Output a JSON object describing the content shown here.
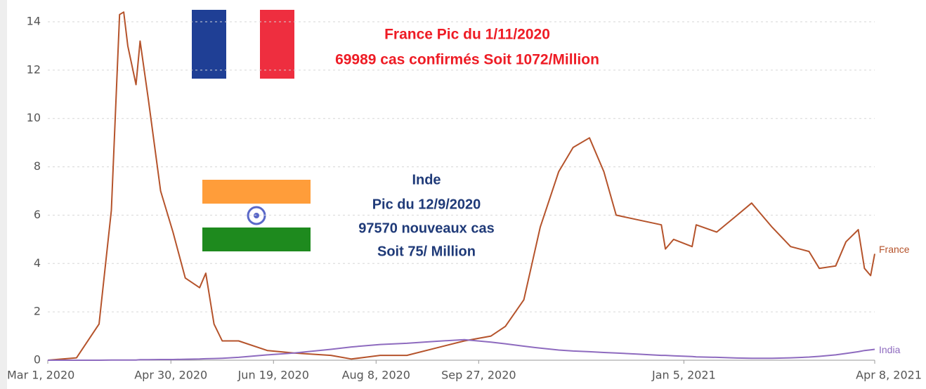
{
  "chart_data": {
    "type": "line",
    "x": [
      "2020-03-01",
      "2020-03-15",
      "2020-03-26",
      "2020-04-01",
      "2020-04-05",
      "2020-04-07",
      "2020-04-09",
      "2020-04-13",
      "2020-04-15",
      "2020-04-19",
      "2020-04-25",
      "2020-05-01",
      "2020-05-07",
      "2020-05-14",
      "2020-05-17",
      "2020-05-21",
      "2020-05-25",
      "2020-06-02",
      "2020-06-16",
      "2020-06-29",
      "2020-07-17",
      "2020-07-27",
      "2020-08-10",
      "2020-08-23",
      "2020-09-06",
      "2020-09-20",
      "2020-10-03",
      "2020-10-10",
      "2020-10-19",
      "2020-10-27",
      "2020-11-05",
      "2020-11-12",
      "2020-11-20",
      "2020-11-27",
      "2020-12-03",
      "2020-12-14",
      "2020-12-25",
      "2020-12-27",
      "2020-12-31",
      "2021-01-09",
      "2021-01-11",
      "2021-01-21",
      "2021-01-31",
      "2021-02-07",
      "2021-02-10",
      "2021-02-17",
      "2021-02-26",
      "2021-03-07",
      "2021-03-12",
      "2021-03-20",
      "2021-03-25",
      "2021-03-31",
      "2021-04-03",
      "2021-04-06",
      "2021-04-08"
    ],
    "series": [
      {
        "name": "France",
        "color": "#b5532b",
        "values": [
          0,
          0.1,
          1.5,
          6.2,
          14.3,
          14.4,
          13,
          11.4,
          13.2,
          10.8,
          7,
          5.3,
          3.4,
          3,
          3.6,
          1.5,
          0.8,
          0.8,
          0.4,
          0.3,
          0.2,
          0.05,
          0.2,
          0.2,
          0.5,
          0.8,
          1.0,
          1.4,
          2.5,
          5.5,
          7.8,
          8.8,
          9.2,
          7.8,
          6.0,
          5.8,
          5.6,
          4.6,
          5.0,
          4.7,
          5.6,
          5.3,
          6.0,
          6.5,
          6.2,
          5.5,
          4.7,
          4.5,
          3.8,
          3.9,
          4.9,
          5.4,
          3.8,
          3.5,
          4.4
        ]
      },
      {
        "name": "India",
        "color": "#8e6bbf",
        "values": [
          0,
          0,
          0,
          0.01,
          0.01,
          0.01,
          0.01,
          0.01,
          0.02,
          0.02,
          0.03,
          0.03,
          0.04,
          0.05,
          0.06,
          0.07,
          0.08,
          0.12,
          0.22,
          0.3,
          0.45,
          0.55,
          0.65,
          0.7,
          0.78,
          0.85,
          0.75,
          0.68,
          0.58,
          0.5,
          0.42,
          0.38,
          0.35,
          0.32,
          0.3,
          0.25,
          0.2,
          0.2,
          0.18,
          0.15,
          0.14,
          0.12,
          0.09,
          0.08,
          0.08,
          0.08,
          0.1,
          0.13,
          0.16,
          0.22,
          0.28,
          0.35,
          0.4,
          0.43,
          0.45
        ]
      }
    ],
    "xlim": [
      "2020-03-01",
      "2021-04-08"
    ],
    "xticks": [
      {
        "value": "2020-03-01",
        "label": "Mar 1, 2020"
      },
      {
        "value": "2020-04-30",
        "label": "Apr 30, 2020"
      },
      {
        "value": "2020-06-19",
        "label": "Jun 19, 2020"
      },
      {
        "value": "2020-08-08",
        "label": "Aug 8, 2020"
      },
      {
        "value": "2020-09-27",
        "label": "Sep 27, 2020"
      },
      {
        "value": "2021-01-05",
        "label": "Jan 5, 2021"
      },
      {
        "value": "2021-04-08",
        "label": "Apr 8, 2021"
      }
    ],
    "ylim": [
      0,
      14
    ],
    "yticks": [
      0,
      2,
      4,
      6,
      8,
      10,
      12,
      14
    ],
    "grid": true,
    "annotations": [
      [
        "France Pic du 1/11/2020",
        "69989 cas confirmés Soit 1072/Million"
      ],
      [
        "Inde",
        "Pic du 12/9/2020",
        "97570 nouveaux cas",
        "Soit 75/ Million"
      ]
    ]
  }
}
